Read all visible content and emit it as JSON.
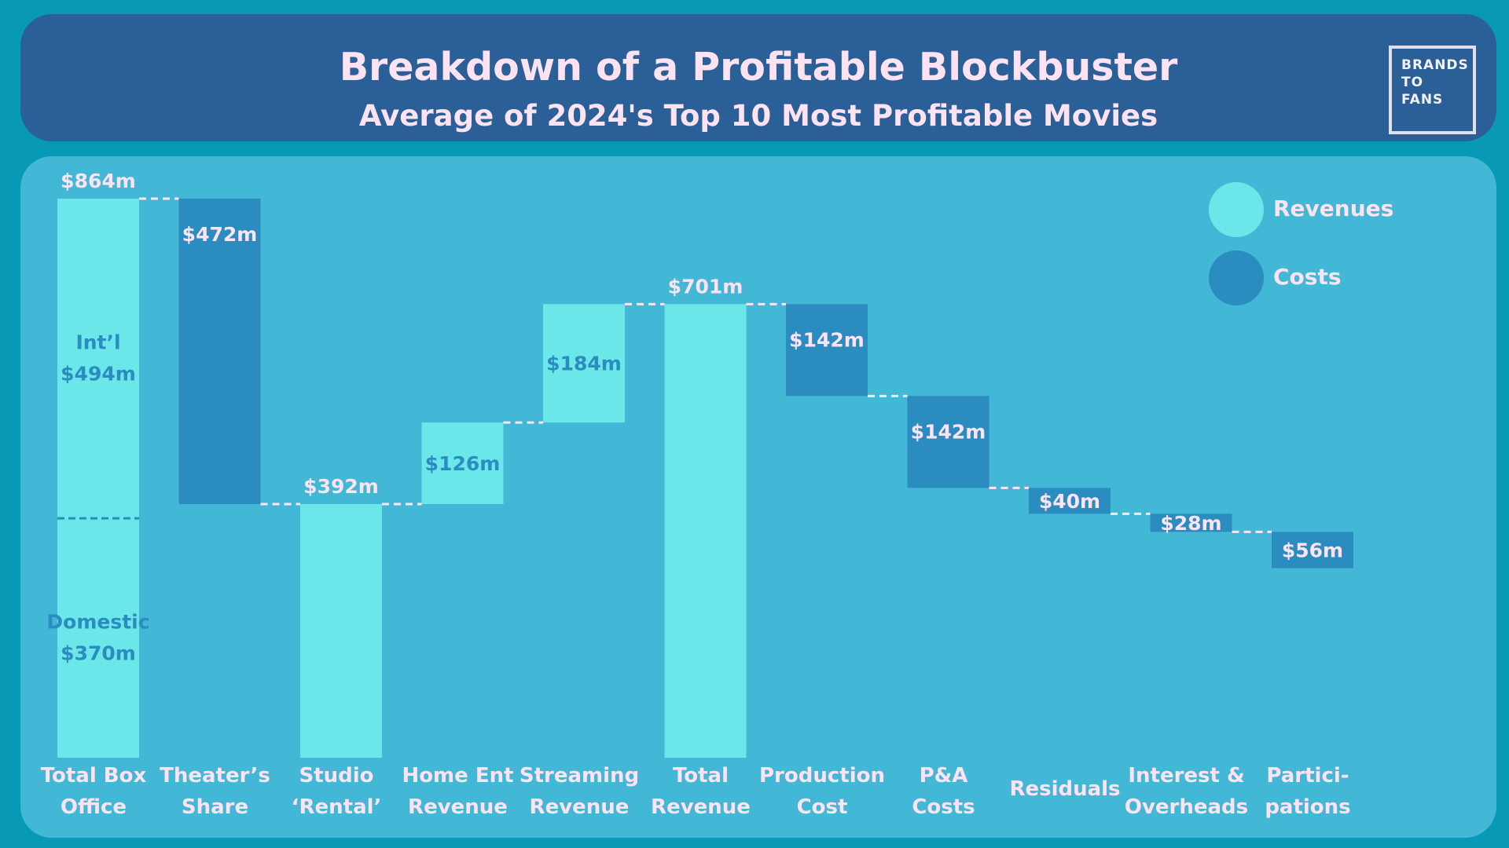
{
  "header": {
    "title": "Breakdown of a Profitable Blockbuster",
    "subtitle": "Average of 2024's Top 10 Most Profitable Movies"
  },
  "logo": {
    "lines": [
      "BRANDS",
      "TO",
      "FANS"
    ]
  },
  "legend": [
    {
      "label": "Revenues",
      "color": "#6be6e9"
    },
    {
      "label": "Costs",
      "color": "#2a8cbf"
    }
  ],
  "chart_data": {
    "type": "waterfall",
    "unit": "$m",
    "ylim": [
      0,
      864
    ],
    "grid": false,
    "legend_position": "top-right",
    "steps": [
      {
        "label": [
          "Total Box",
          "Office"
        ],
        "kind": "total",
        "start": 0,
        "end": 864,
        "value_label": "$864m",
        "segments": [
          {
            "name": [
              "Domestic",
              "$370m"
            ],
            "value": 370
          },
          {
            "name": [
              "Int’l",
              "$494m"
            ],
            "value": 494
          }
        ]
      },
      {
        "label": [
          "Theater’s",
          "Share"
        ],
        "kind": "cost",
        "start": 864,
        "end": 392,
        "value_label": "$472m"
      },
      {
        "label": [
          "Studio",
          "‘Rental’"
        ],
        "kind": "total",
        "start": 0,
        "end": 392,
        "value_label": "$392m"
      },
      {
        "label": [
          "Home Ent",
          "Revenue"
        ],
        "kind": "revenue",
        "start": 392,
        "end": 518,
        "value_label": "$126m"
      },
      {
        "label": [
          "Streaming",
          "Revenue"
        ],
        "kind": "revenue",
        "start": 518,
        "end": 701,
        "value_label": "$184m"
      },
      {
        "label": [
          "Total",
          "Revenue"
        ],
        "kind": "total",
        "start": 0,
        "end": 701,
        "value_label": "$701m"
      },
      {
        "label": [
          "Production",
          "Cost"
        ],
        "kind": "cost",
        "start": 701,
        "end": 559,
        "value_label": "$142m"
      },
      {
        "label": [
          "P&A",
          "Costs"
        ],
        "kind": "cost",
        "start": 559,
        "end": 417,
        "value_label": "$142m"
      },
      {
        "label": [
          "Residuals"
        ],
        "kind": "cost",
        "start": 417,
        "end": 377,
        "value_label": "$40m"
      },
      {
        "label": [
          "Interest &",
          "Overheads"
        ],
        "kind": "cost",
        "start": 377,
        "end": 349,
        "value_label": "$28m"
      },
      {
        "label": [
          "Partici-",
          "pations"
        ],
        "kind": "cost",
        "start": 349,
        "end": 293,
        "value_label": "$56m"
      }
    ],
    "colors": {
      "revenue": "#6be6e9",
      "cost": "#2a8cbf",
      "label_on_revenue": "#2a8cbf",
      "label_light": "#fde3f2",
      "category_label": "#fde3f2",
      "connector": "#fde3f2",
      "segment_divider": "#2a8cbf"
    }
  }
}
